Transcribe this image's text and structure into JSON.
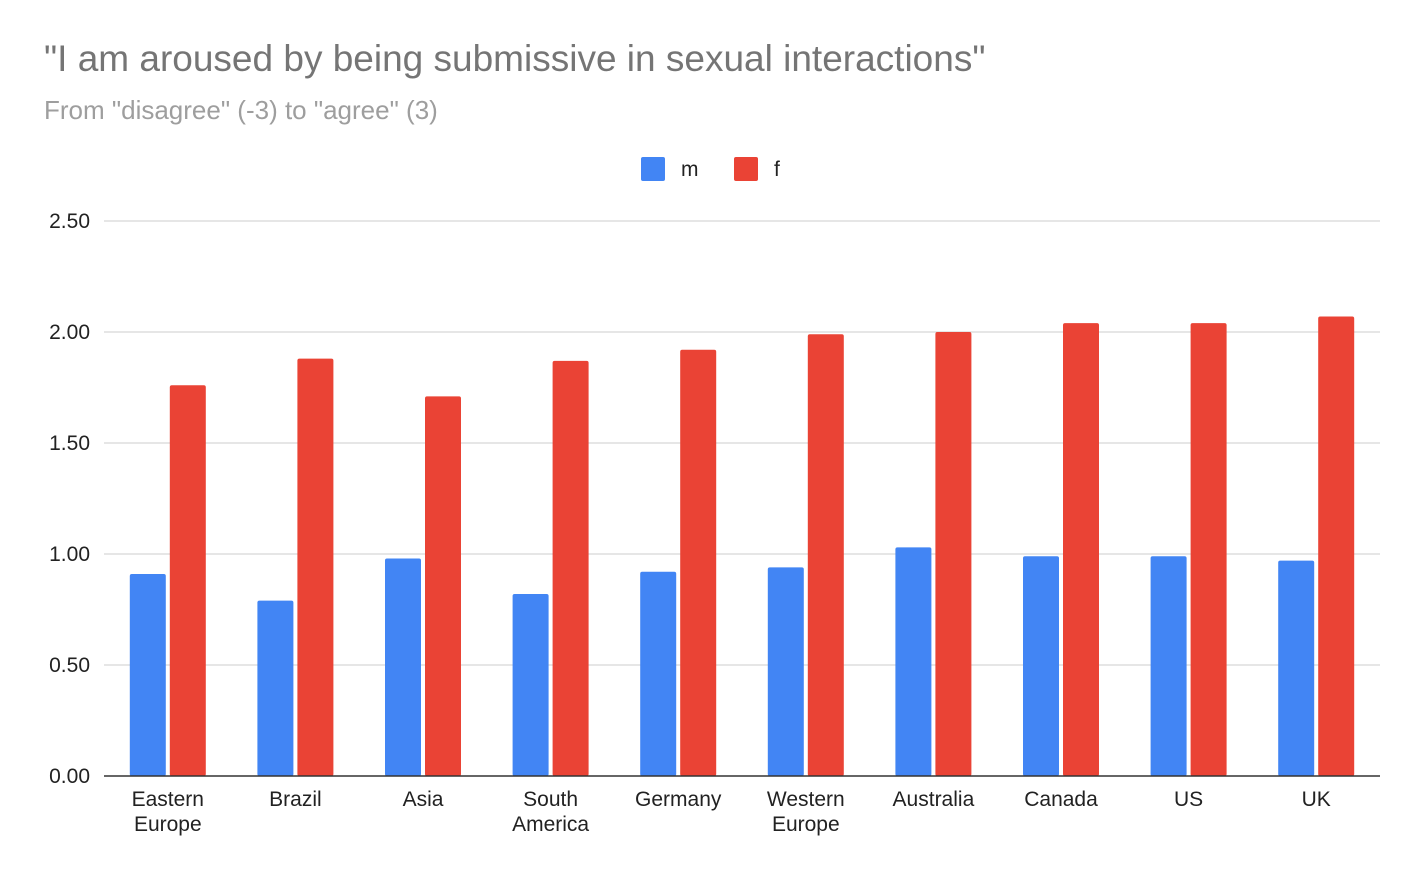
{
  "chart_data": {
    "type": "bar",
    "title": "\"I am aroused by being submissive in sexual interactions\"",
    "subtitle": "From \"disagree\" (-3) to \"agree\" (3)",
    "categories": [
      [
        "Eastern",
        "Europe"
      ],
      [
        "Brazil"
      ],
      [
        "Asia"
      ],
      [
        "South",
        "America"
      ],
      [
        "Germany"
      ],
      [
        "Western",
        "Europe"
      ],
      [
        "Australia"
      ],
      [
        "Canada"
      ],
      [
        "US"
      ],
      [
        "UK"
      ]
    ],
    "series": [
      {
        "name": "m",
        "color": "#4285f4",
        "values": [
          0.91,
          0.79,
          0.98,
          0.82,
          0.92,
          0.94,
          1.03,
          0.99,
          0.99,
          0.97
        ]
      },
      {
        "name": "f",
        "color": "#ea4335",
        "values": [
          1.76,
          1.88,
          1.71,
          1.87,
          1.92,
          1.99,
          2.0,
          2.04,
          2.04,
          2.07
        ]
      }
    ],
    "ylim": [
      0,
      2.5
    ],
    "yticks": [
      "0.00",
      "0.50",
      "1.00",
      "1.50",
      "2.00",
      "2.50"
    ],
    "ytick_values": [
      0,
      0.5,
      1,
      1.5,
      2,
      2.5
    ],
    "grid": true,
    "legend_position": "top-center"
  }
}
